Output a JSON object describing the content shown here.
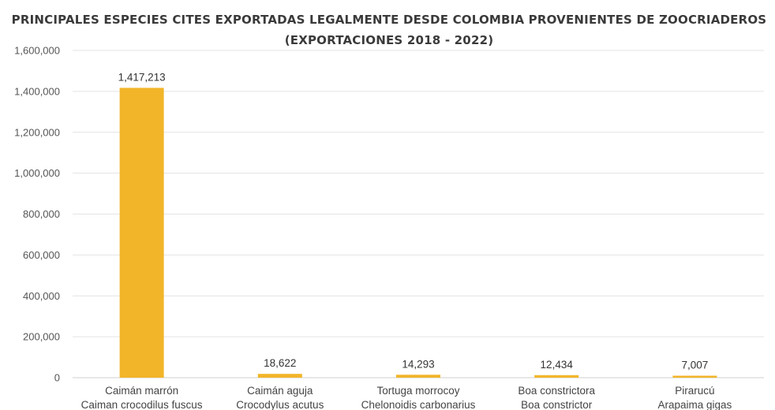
{
  "chart_data": {
    "type": "bar",
    "title": "PRINCIPALES ESPECIES CITES EXPORTADAS LEGALMENTE DESDE COLOMBIA PROVENIENTES DE ZOOCRIADEROS",
    "subtitle": "(EXPORTACIONES 2018 - 2022)",
    "xlabel": "",
    "ylabel": "",
    "ylim": [
      0,
      1600000
    ],
    "yticks": [
      "0",
      "200,000",
      "400,000",
      "600,000",
      "800,000",
      "1,000,000",
      "1,200,000",
      "1,400,000",
      "1,600,000"
    ],
    "categories": [
      {
        "common": "Caimán marrón",
        "scientific": "Caiman crocodilus fuscus"
      },
      {
        "common": "Caimán aguja",
        "scientific": "Crocodylus acutus"
      },
      {
        "common": "Tortuga morrocoy",
        "scientific": "Chelonoidis carbonarius"
      },
      {
        "common": "Boa constrictora",
        "scientific": "Boa constrictor"
      },
      {
        "common": "Pirarucú",
        "scientific": "Arapaima gigas"
      }
    ],
    "values": [
      1417213,
      18622,
      14293,
      12434,
      7007
    ],
    "data_labels": [
      "1,417,213",
      "18,622",
      "14,293",
      "12,434",
      "7,007"
    ],
    "bar_color": "#F2B52A",
    "grid": true,
    "legend": "none"
  }
}
